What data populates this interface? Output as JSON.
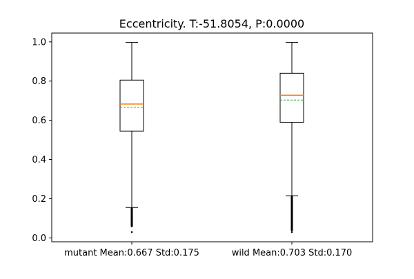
{
  "chart_data": {
    "type": "box",
    "title": "Eccentricity. T:-51.8054, P:0.0000",
    "xlabel": "",
    "ylabel": "",
    "ylim": [
      -0.02,
      1.045
    ],
    "yticks": [
      0.0,
      0.2,
      0.4,
      0.6,
      0.8,
      1.0
    ],
    "ytick_labels": [
      "0.0",
      "0.2",
      "0.4",
      "0.6",
      "0.8",
      "1.0"
    ],
    "categories": [
      "mutant Mean:0.667 Std:0.175",
      "wild Mean:0.703 Std:0.170"
    ],
    "boxes": [
      {
        "whisker_low": 0.155,
        "q1": 0.545,
        "median": 0.683,
        "mean": 0.667,
        "q3": 0.805,
        "whisker_high": 0.997,
        "outlier_range": [
          0.06,
          0.15
        ],
        "outliers": [
          0.03
        ]
      },
      {
        "whisker_low": 0.215,
        "q1": 0.59,
        "median": 0.728,
        "mean": 0.703,
        "q3": 0.84,
        "whisker_high": 0.997,
        "outlier_range": [
          0.04,
          0.21
        ],
        "outliers": [
          0.03
        ]
      }
    ],
    "colors": {
      "box": "#000000",
      "median": "#ff7f0e",
      "mean": "#2ca02c",
      "outlier": "#000000"
    },
    "grid": false,
    "legend": "none"
  }
}
